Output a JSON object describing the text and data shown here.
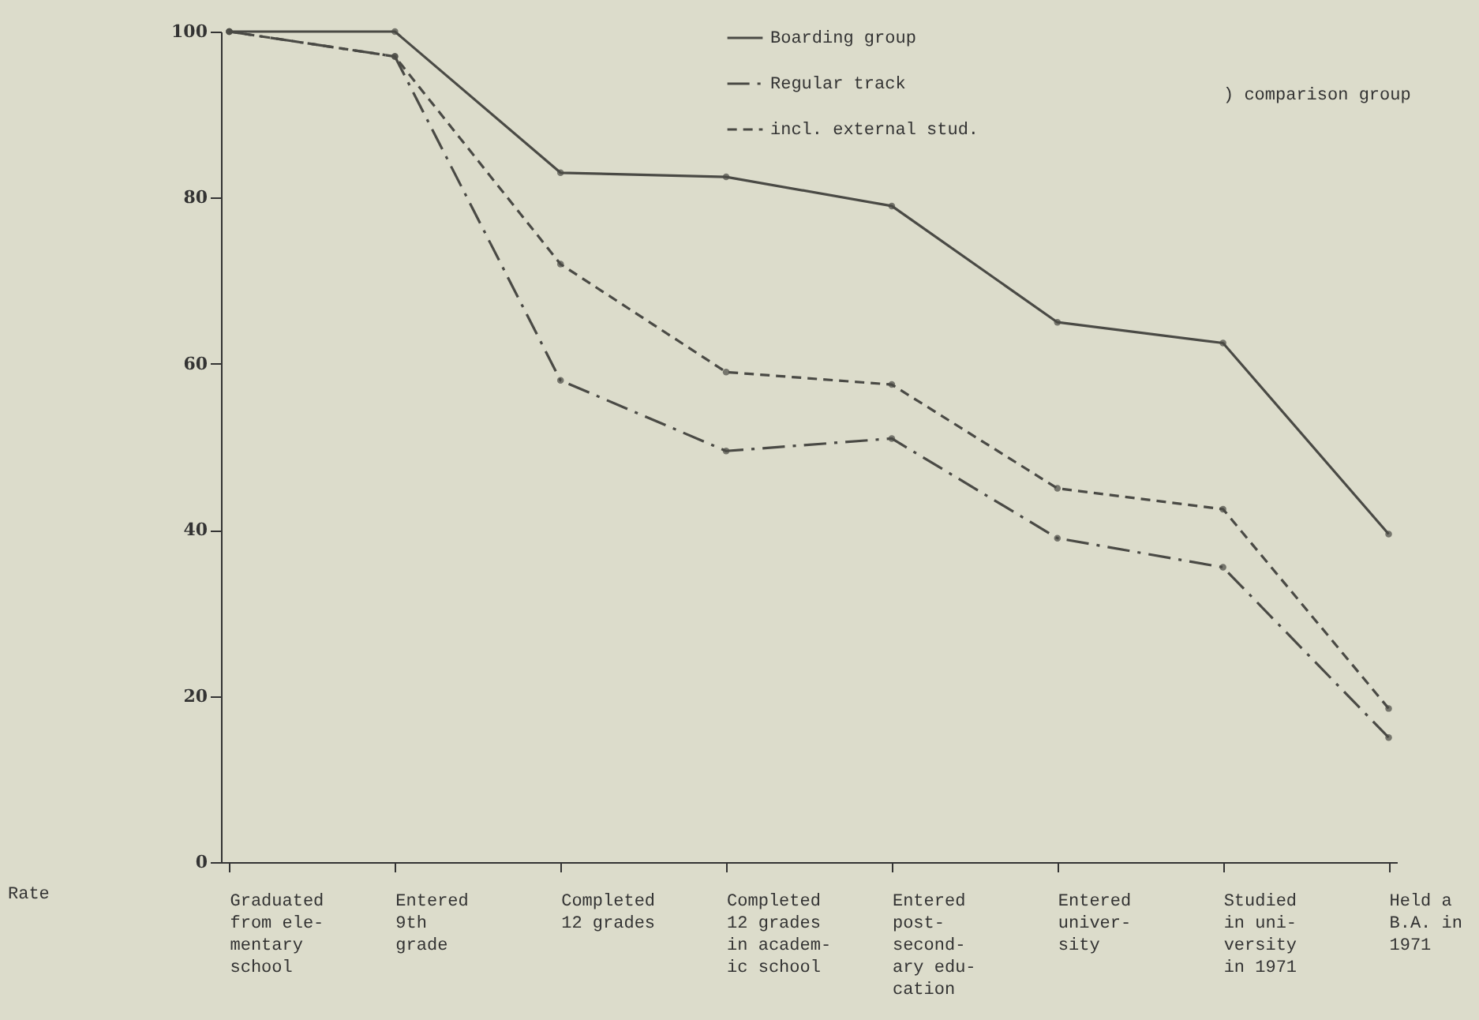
{
  "chart_data": {
    "type": "line",
    "categories": [
      "Graduated\nfrom ele-\nmentary\nschool",
      "Entered\n9th\ngrade",
      "Completed\n12 grades",
      "Completed\n12 grades\nin academ-\nic school",
      "Entered\npost-\nsecond-\nary edu-\ncation",
      "Entered\nuniver-\nsity",
      "Studied\nin uni-\nversity\nin 1971",
      "Held a\nB.A. in\n1971"
    ],
    "series": [
      {
        "name": "Boarding group",
        "color": "#4a4a45",
        "line_style": "solid",
        "values": [
          100,
          100,
          83,
          82.5,
          79,
          65,
          62.5,
          39.5
        ]
      },
      {
        "name": "Regular track",
        "color": "#4a4a45",
        "line_style": "dashdot",
        "values": [
          100,
          97,
          58,
          49.5,
          51,
          39,
          35.5,
          15
        ]
      },
      {
        "name": "incl. external stud.",
        "color": "#4a4a45",
        "line_style": "dashed",
        "values": [
          100,
          97,
          72,
          59,
          57.5,
          45,
          42.5,
          18.5
        ]
      }
    ],
    "annotations": [
      ") comparison group",
      "Rate"
    ],
    "ylim": [
      0,
      100
    ],
    "yticks": [
      0,
      20,
      40,
      60,
      80,
      100
    ],
    "marker": "circle",
    "grid": false,
    "legend": "top right"
  }
}
